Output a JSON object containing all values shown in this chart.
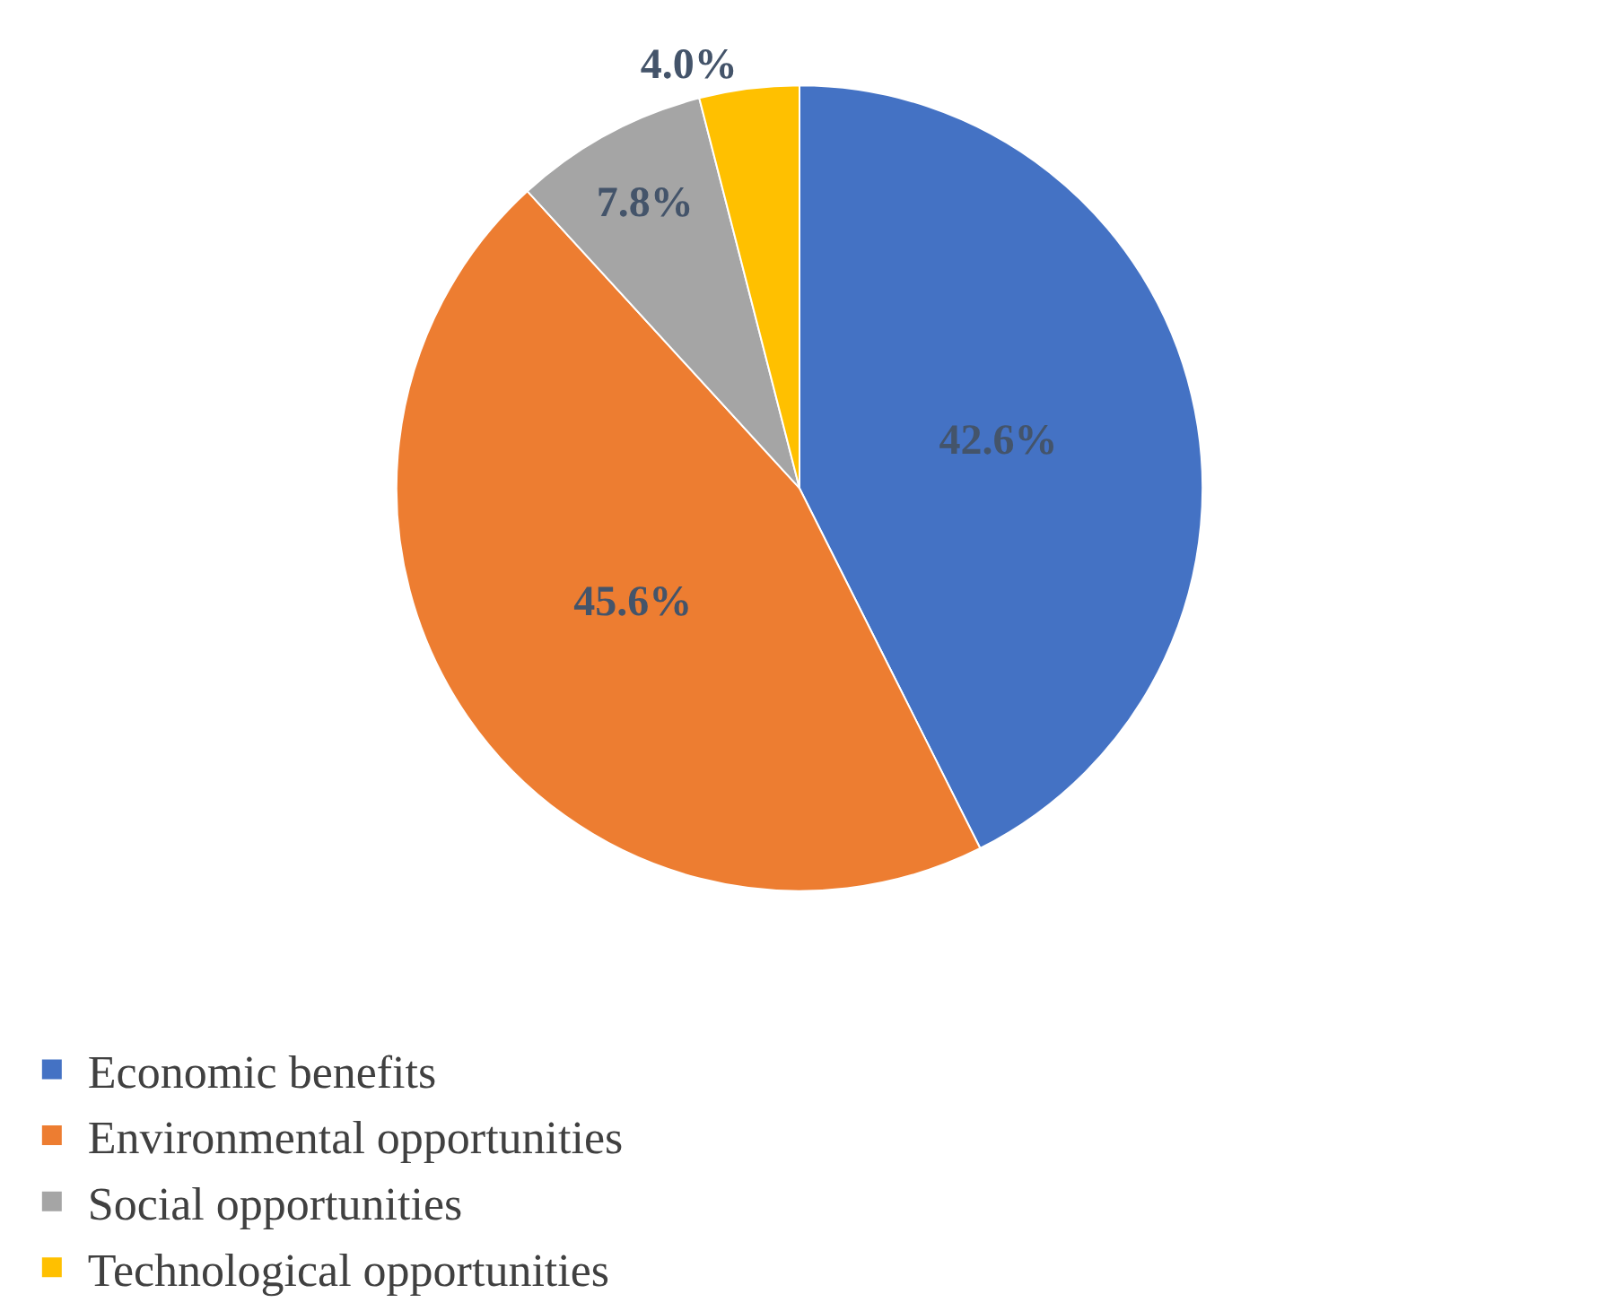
{
  "chart_data": {
    "type": "pie",
    "categories": [
      "Economic benefits",
      "Environmental opportunities",
      "Social opportunities",
      "Technological opportunities"
    ],
    "values": [
      42.6,
      45.6,
      7.8,
      4.0
    ],
    "value_labels": [
      "42.6%",
      "45.6%",
      "7.8%",
      "4.0%"
    ],
    "colors": [
      "#4472c4",
      "#ed7d31",
      "#a5a5a5",
      "#ffc000"
    ],
    "legend": "bottom"
  }
}
